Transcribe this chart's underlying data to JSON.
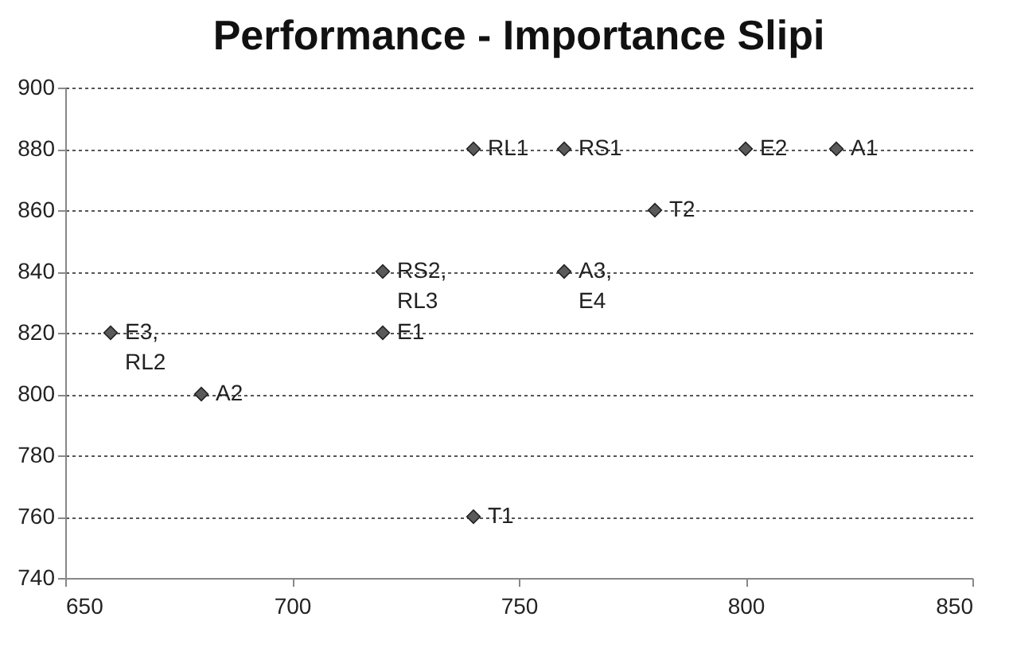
{
  "chart_data": {
    "type": "scatter",
    "title": "Performance - Importance Slipi",
    "series": [
      {
        "color": "#5a5a5a",
        "x": [
          740,
          760,
          800,
          820,
          780,
          720,
          760,
          660,
          720,
          680,
          740
        ],
        "values": [
          880,
          880,
          880,
          880,
          860,
          840,
          840,
          820,
          820,
          800,
          760
        ]
      }
    ],
    "xlim": [
      650,
      850
    ],
    "xticks": [
      650,
      700,
      750,
      800,
      850
    ],
    "ylim": [
      740,
      900
    ],
    "yticks": [
      740,
      760,
      780,
      800,
      820,
      840,
      860,
      880,
      900
    ],
    "grid": "y",
    "marker": "diamond",
    "annotations": [
      {
        "text": "RL1",
        "x": 740,
        "y": 880
      },
      {
        "text": "RS1",
        "x": 760,
        "y": 880
      },
      {
        "text": "E2",
        "x": 800,
        "y": 880
      },
      {
        "text": "A1",
        "x": 820,
        "y": 880
      },
      {
        "text": "T2",
        "x": 780,
        "y": 860
      },
      {
        "text": "RS2,\nRL3",
        "x": 720,
        "y": 840
      },
      {
        "text": "A3,\nE4",
        "x": 760,
        "y": 840
      },
      {
        "text": "E3,\nRL2",
        "x": 660,
        "y": 820
      },
      {
        "text": "E1",
        "x": 720,
        "y": 820
      },
      {
        "text": "A2",
        "x": 680,
        "y": 800
      },
      {
        "text": "T1",
        "x": 740,
        "y": 760
      }
    ]
  }
}
